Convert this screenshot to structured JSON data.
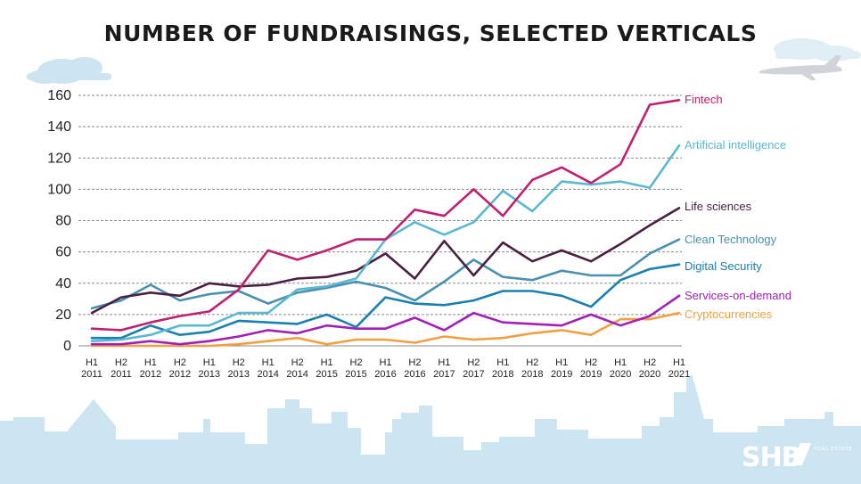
{
  "chart_data": {
    "type": "line",
    "title": "NUMBER OF FUNDRAISINGS, SELECTED VERTICALS",
    "xlabel": "",
    "ylabel": "",
    "ylim": [
      0,
      160
    ],
    "yticks": [
      "0",
      "20",
      "40",
      "60",
      "80",
      "100",
      "120",
      "140",
      "160"
    ],
    "grid": "horizontal-dashed",
    "legend": "right-inline",
    "categories": [
      [
        "H1",
        "2011"
      ],
      [
        "H2",
        "2011"
      ],
      [
        "H1",
        "2012"
      ],
      [
        "H2",
        "2012"
      ],
      [
        "H1",
        "2013"
      ],
      [
        "H2",
        "2013"
      ],
      [
        "H1",
        "2014"
      ],
      [
        "H2",
        "2014"
      ],
      [
        "H1",
        "2015"
      ],
      [
        "H2",
        "2015"
      ],
      [
        "H1",
        "2016"
      ],
      [
        "H2",
        "2016"
      ],
      [
        "H1",
        "2017"
      ],
      [
        "H2",
        "2017"
      ],
      [
        "H1",
        "2018"
      ],
      [
        "H2",
        "2018"
      ],
      [
        "H1",
        "2019"
      ],
      [
        "H2",
        "2019"
      ],
      [
        "H1",
        "2020"
      ],
      [
        "H2",
        "2020"
      ],
      [
        "H1",
        "2021"
      ]
    ],
    "series": [
      {
        "name": "Cryptocurrencies",
        "color": "#f0a040",
        "values": [
          0,
          0,
          0,
          0,
          0,
          1,
          3,
          5,
          1,
          4,
          4,
          2,
          6,
          4,
          5,
          8,
          10,
          7,
          17,
          17,
          21
        ]
      },
      {
        "name": "Services-on-demand",
        "color": "#a020b8",
        "values": [
          1,
          1,
          3,
          1,
          3,
          6,
          10,
          8,
          13,
          11,
          11,
          18,
          10,
          21,
          15,
          14,
          13,
          20,
          13,
          19,
          32
        ]
      },
      {
        "name": "Digital Security",
        "color": "#1a80b0",
        "values": [
          5,
          5,
          13,
          7,
          9,
          16,
          15,
          14,
          20,
          12,
          31,
          27,
          26,
          29,
          35,
          35,
          32,
          25,
          42,
          49,
          52
        ]
      },
      {
        "name": "Clean Technology",
        "color": "#4a90b0",
        "values": [
          24,
          29,
          39,
          29,
          33,
          35,
          27,
          34,
          37,
          41,
          37,
          29,
          41,
          55,
          44,
          42,
          48,
          45,
          45,
          59,
          68
        ]
      },
      {
        "name": "Life sciences",
        "color": "#4a1f40",
        "values": [
          21,
          31,
          34,
          32,
          40,
          38,
          39,
          43,
          44,
          48,
          59,
          43,
          67,
          45,
          66,
          54,
          61,
          54,
          65,
          77,
          88
        ]
      },
      {
        "name": "Artificial intelligence",
        "color": "#5ab8d0",
        "values": [
          3,
          4,
          7,
          13,
          13,
          21,
          21,
          36,
          38,
          43,
          68,
          79,
          71,
          79,
          99,
          86,
          105,
          103,
          105,
          101,
          128
        ]
      },
      {
        "name": "Fintech",
        "color": "#c02070",
        "values": [
          11,
          10,
          15,
          19,
          22,
          36,
          61,
          55,
          61,
          68,
          68,
          87,
          83,
          100,
          83,
          106,
          114,
          104,
          116,
          154,
          157
        ]
      }
    ]
  },
  "brand": {
    "name": "SHB",
    "tagline": "REAL ESTATE",
    "colors": {
      "skyline": "#cde5f0",
      "cloud": "#cde5f0",
      "plane": "#d0d4d8"
    }
  }
}
